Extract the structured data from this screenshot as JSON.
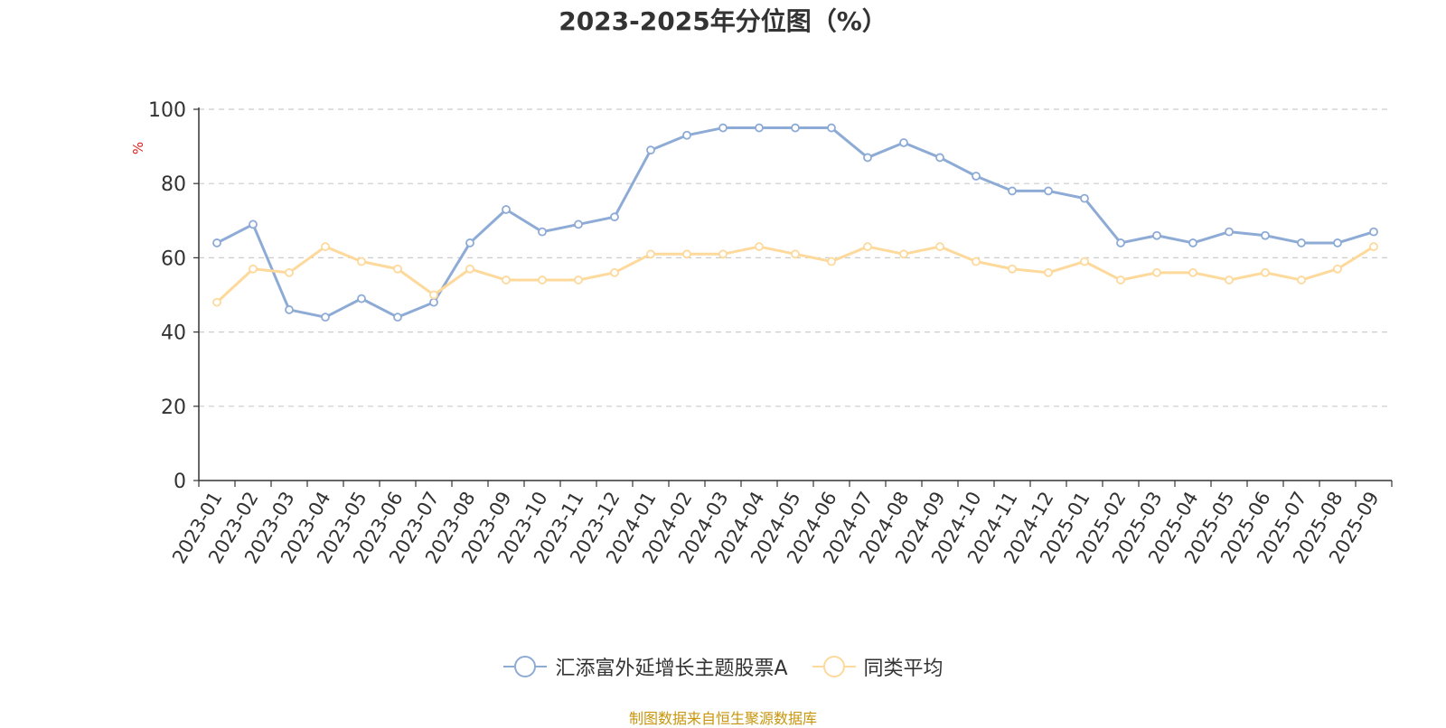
{
  "chart_data": {
    "type": "line",
    "title": "2023-2025年分位图（%）",
    "ylabel": "%",
    "xlabel": "",
    "ylim": [
      0,
      100
    ],
    "yticks": [
      0,
      20,
      40,
      60,
      80,
      100
    ],
    "grid": true,
    "legend_position": "bottom",
    "categories": [
      "2023-01",
      "2023-02",
      "2023-03",
      "2023-04",
      "2023-05",
      "2023-06",
      "2023-07",
      "2023-08",
      "2023-09",
      "2023-10",
      "2023-11",
      "2023-12",
      "2024-01",
      "2024-02",
      "2024-03",
      "2024-04",
      "2024-05",
      "2024-06",
      "2024-07",
      "2024-08",
      "2024-09",
      "2024-10",
      "2024-11",
      "2024-12",
      "2025-01",
      "2025-02",
      "2025-03",
      "2025-04",
      "2025-05",
      "2025-06",
      "2025-07",
      "2025-08",
      "2025-09"
    ],
    "series": [
      {
        "name": "汇添富外延增长主题股票A",
        "color": "#8eabd6",
        "values": [
          64,
          69,
          46,
          44,
          49,
          44,
          48,
          64,
          73,
          67,
          69,
          71,
          89,
          93,
          95,
          95,
          95,
          95,
          87,
          91,
          87,
          82,
          78,
          78,
          76,
          64,
          66,
          64,
          67,
          66,
          64,
          64,
          67
        ]
      },
      {
        "name": "同类平均",
        "color": "#fdd99b",
        "values": [
          48,
          57,
          56,
          63,
          59,
          57,
          50,
          57,
          54,
          54,
          54,
          56,
          61,
          61,
          61,
          63,
          61,
          59,
          63,
          61,
          63,
          59,
          57,
          56,
          59,
          54,
          56,
          56,
          54,
          56,
          54,
          57,
          63
        ]
      }
    ]
  },
  "source_note": "制图数据来自恒生聚源数据库"
}
